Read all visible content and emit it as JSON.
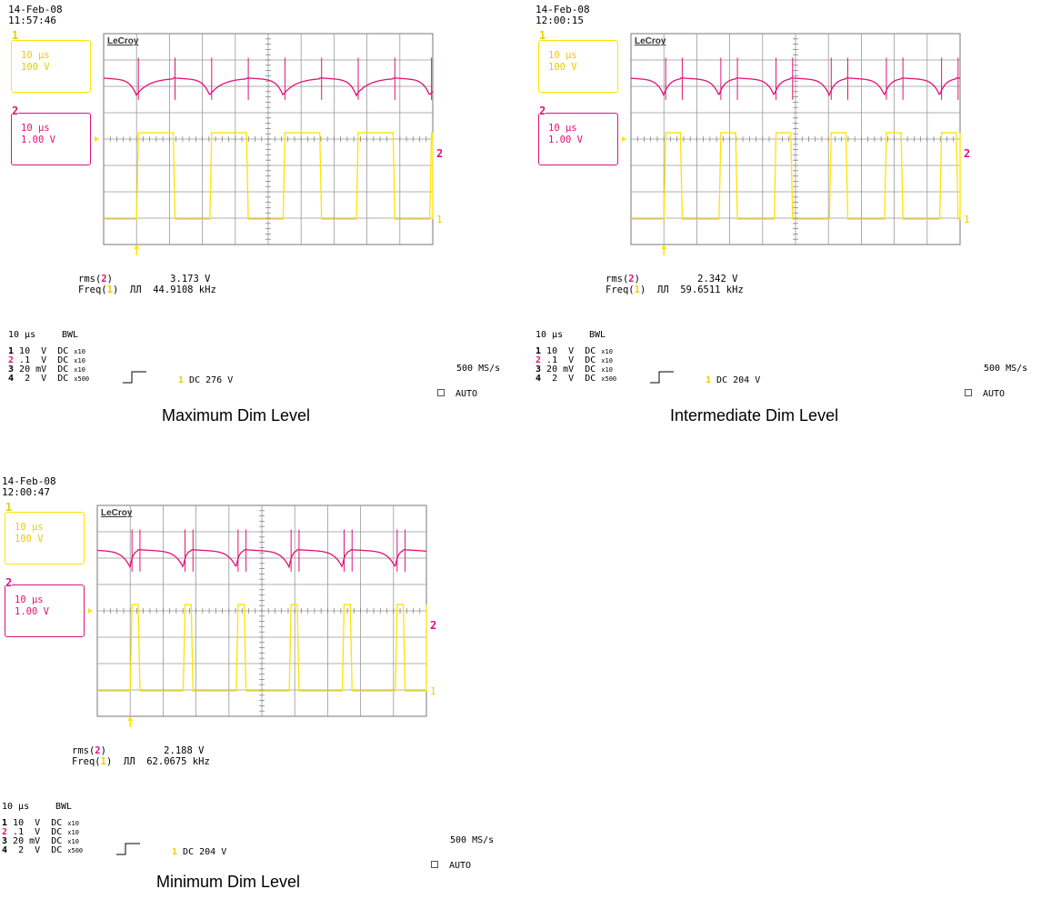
{
  "panels": [
    {
      "timestamp_date": "14-Feb-08",
      "timestamp_time": "11:57:46",
      "brand": "LeCroy",
      "ch1_box": {
        "tag": "1",
        "timebase": "10 µs",
        "scale": "100 V"
      },
      "ch2_box": {
        "tag": "2",
        "timebase": "10 µs",
        "scale": "1.00 V"
      },
      "measurements": {
        "rms_label_pre": "rms(",
        "rms_ch": "2",
        "rms_label_post": ")",
        "rms_value": "3.173 V",
        "freq_label_pre": "Freq(",
        "freq_ch": "1",
        "freq_label_post": ")",
        "freq_value": "44.9108 kHz"
      },
      "timebase": "10 µs",
      "bwl": "BWL",
      "channel_rows": [
        {
          "num": "1",
          "text": " 10  V  DC ",
          "probe": "x10"
        },
        {
          "num": "2",
          "text": " .1  V  DC ",
          "probe": "x10"
        },
        {
          "num": "3",
          "text": " 20 mV  DC ",
          "probe": "x10"
        },
        {
          "num": "4",
          "text": "  2  V  DC ",
          "probe": "x500"
        }
      ],
      "trigger": {
        "ch": "1",
        "text": " DC 276 V"
      },
      "sample_rate": "500 MS/s",
      "mode": "AUTO",
      "caption": "Maximum Dim Level"
    },
    {
      "timestamp_date": "14-Feb-08",
      "timestamp_time": "12:00:15",
      "brand": "LeCroy",
      "ch1_box": {
        "tag": "1",
        "timebase": "10 µs",
        "scale": "100 V"
      },
      "ch2_box": {
        "tag": "2",
        "timebase": "10 µs",
        "scale": "1.00 V"
      },
      "measurements": {
        "rms_label_pre": "rms(",
        "rms_ch": "2",
        "rms_label_post": ")",
        "rms_value": "2.342 V",
        "freq_label_pre": "Freq(",
        "freq_ch": "1",
        "freq_label_post": ")",
        "freq_value": "59.6511 kHz"
      },
      "timebase": "10 µs",
      "bwl": "BWL",
      "channel_rows": [
        {
          "num": "1",
          "text": " 10  V  DC ",
          "probe": "x10"
        },
        {
          "num": "2",
          "text": " .1  V  DC ",
          "probe": "x10"
        },
        {
          "num": "3",
          "text": " 20 mV  DC ",
          "probe": "x10"
        },
        {
          "num": "4",
          "text": "  2  V  DC ",
          "probe": "x500"
        }
      ],
      "trigger": {
        "ch": "1",
        "text": " DC 204 V"
      },
      "sample_rate": "500 MS/s",
      "mode": "AUTO",
      "caption": "Intermediate Dim Level"
    },
    {
      "timestamp_date": "14-Feb-08",
      "timestamp_time": "12:00:47",
      "brand": "LeCroy",
      "ch1_box": {
        "tag": "1",
        "timebase": "10 µs",
        "scale": "100 V"
      },
      "ch2_box": {
        "tag": "2",
        "timebase": "10 µs",
        "scale": "1.00 V"
      },
      "measurements": {
        "rms_label_pre": "rms(",
        "rms_ch": "2",
        "rms_label_post": ")",
        "rms_value": "2.188 V",
        "freq_label_pre": "Freq(",
        "freq_ch": "1",
        "freq_label_post": ")",
        "freq_value": "62.0675 kHz"
      },
      "timebase": "10 µs",
      "bwl": "BWL",
      "channel_rows": [
        {
          "num": "1",
          "text": " 10  V  DC ",
          "probe": "x10"
        },
        {
          "num": "2",
          "text": " .1  V  DC ",
          "probe": "x10"
        },
        {
          "num": "3",
          "text": " 20 mV  DC ",
          "probe": "x10"
        },
        {
          "num": "4",
          "text": "  2  V  DC ",
          "probe": "x500"
        }
      ],
      "trigger": {
        "ch": "1",
        "text": " DC 204 V"
      },
      "sample_rate": "500 MS/s",
      "mode": "AUTO",
      "caption": "Minimum Dim Level"
    }
  ],
  "chart_data": [
    {
      "type": "line",
      "title": "Maximum Dim Level",
      "x_unit": "µs",
      "xlim": [
        0,
        100
      ],
      "grid": true,
      "series": [
        {
          "name": "1",
          "color": "#ffe300",
          "kind": "square",
          "frequency_khz": 44.9108,
          "duty": 0.5
        },
        {
          "name": "2",
          "color": "#e0127a",
          "kind": "ripple",
          "rms_v": 3.173
        }
      ]
    },
    {
      "type": "line",
      "title": "Intermediate Dim Level",
      "x_unit": "µs",
      "xlim": [
        0,
        100
      ],
      "grid": true,
      "series": [
        {
          "name": "1",
          "color": "#ffe300",
          "kind": "square",
          "frequency_khz": 59.6511,
          "duty": 0.3
        },
        {
          "name": "2",
          "color": "#e0127a",
          "kind": "ripple",
          "rms_v": 2.342
        }
      ]
    },
    {
      "type": "line",
      "title": "Minimum Dim Level",
      "x_unit": "µs",
      "xlim": [
        0,
        100
      ],
      "grid": true,
      "series": [
        {
          "name": "1",
          "color": "#ffe300",
          "kind": "square",
          "frequency_khz": 62.0675,
          "duty": 0.15
        },
        {
          "name": "2",
          "color": "#e0127a",
          "kind": "ripple",
          "rms_v": 2.188
        }
      ]
    }
  ]
}
